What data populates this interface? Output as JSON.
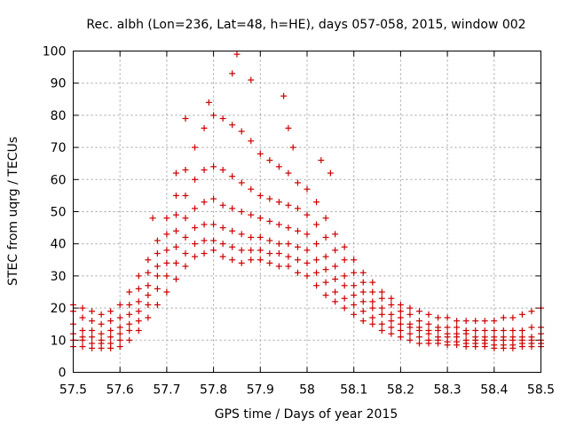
{
  "chart_data": {
    "type": "scatter",
    "title": "Rec. albh (Lon=236, Lat=48, h=HE), days 057-058, 2015, window 002",
    "xlabel": "GPS time / Days of year 2015",
    "ylabel": "STEC from uqrg / TECUs",
    "xlim": [
      57.5,
      58.5
    ],
    "ylim": [
      0,
      100
    ],
    "x_ticks": [
      "57.5",
      "57.6",
      "57.7",
      "57.8",
      "57.9",
      "58",
      "58.1",
      "58.2",
      "58.3",
      "58.4",
      "58.5"
    ],
    "y_ticks": [
      "0",
      "10",
      "20",
      "30",
      "40",
      "50",
      "60",
      "70",
      "80",
      "90",
      "100"
    ],
    "grid": true,
    "marker": "+",
    "color": "#cc0000",
    "series": [
      {
        "name": "s1",
        "x": [
          57.5,
          57.52,
          57.54,
          57.56,
          57.58,
          57.6,
          57.62,
          57.64,
          57.66,
          57.68,
          57.7,
          57.72,
          57.74,
          57.76,
          57.78,
          57.8,
          57.82,
          57.84,
          57.86,
          57.88,
          57.9,
          57.92,
          57.94,
          57.96,
          57.98,
          58.0,
          58.02,
          58.04,
          58.06,
          58.08,
          58.1,
          58.12,
          58.14,
          58.16,
          58.18,
          58.2,
          58.22,
          58.24,
          58.26,
          58.28,
          58.3,
          58.32,
          58.34,
          58.36,
          58.38,
          58.4,
          58.42,
          58.44,
          58.46,
          58.48,
          58.5
        ],
        "y": [
          8,
          8,
          7.5,
          7.5,
          7.5,
          8,
          10,
          13,
          17,
          21,
          25,
          29,
          33,
          36,
          37,
          38,
          36,
          35,
          34,
          35,
          35,
          34,
          33,
          33,
          31,
          30,
          27,
          24,
          22,
          20,
          18,
          16,
          15,
          13,
          12,
          11,
          10,
          9,
          9,
          9,
          8.5,
          8.5,
          8,
          8,
          8,
          7.5,
          7.5,
          7.5,
          8,
          8,
          8
        ]
      },
      {
        "name": "s2",
        "x": [
          57.5,
          57.52,
          57.54,
          57.56,
          57.58,
          57.6,
          57.62,
          57.64,
          57.66,
          57.68,
          57.7,
          57.72,
          57.74,
          57.76,
          57.78,
          57.8,
          57.82,
          57.84,
          57.86,
          57.88,
          57.9,
          57.92,
          57.94,
          57.96,
          57.98,
          58.0,
          58.02,
          58.04,
          58.06,
          58.08,
          58.1,
          58.12,
          58.14,
          58.16,
          58.18,
          58.2,
          58.22,
          58.24,
          58.26,
          58.28,
          58.3,
          58.32,
          58.34,
          58.36,
          58.38,
          58.4,
          58.42,
          58.44,
          58.46,
          58.48,
          58.5
        ],
        "y": [
          10,
          10,
          9,
          9,
          9,
          10,
          13,
          16,
          21,
          26,
          30,
          34,
          37,
          40,
          41,
          41,
          40,
          39,
          38,
          38,
          38,
          37,
          37,
          36,
          35,
          34,
          31,
          28,
          25,
          23,
          21,
          19,
          17,
          15,
          14,
          13,
          12,
          11,
          10,
          10,
          9.5,
          9.5,
          9,
          9,
          9,
          8.5,
          8.5,
          8.5,
          9,
          9,
          9
        ]
      },
      {
        "name": "s3",
        "x": [
          57.5,
          57.52,
          57.54,
          57.56,
          57.58,
          57.6,
          57.62,
          57.64,
          57.66,
          57.68,
          57.7,
          57.72,
          57.74,
          57.76,
          57.78,
          57.8,
          57.82,
          57.84,
          57.86,
          57.88,
          57.9,
          57.92,
          57.94,
          57.96,
          57.98,
          58.0,
          58.02,
          58.04,
          58.06,
          58.08,
          58.1,
          58.12,
          58.14,
          58.16,
          58.18,
          58.2,
          58.22,
          58.24,
          58.26,
          58.28,
          58.3,
          58.32,
          58.34,
          58.36,
          58.38,
          58.4,
          58.42,
          58.44,
          58.46,
          58.48,
          58.5
        ],
        "y": [
          12,
          11,
          11,
          10,
          11,
          12,
          15,
          19,
          24,
          30,
          34,
          39,
          42,
          45,
          46,
          46,
          45,
          44,
          43,
          42,
          42,
          41,
          40,
          40,
          39,
          38,
          35,
          32,
          29,
          27,
          24,
          22,
          20,
          18,
          16,
          15,
          14,
          13,
          12,
          11,
          11,
          11,
          10,
          10,
          10,
          10,
          10,
          10,
          10,
          10,
          10
        ]
      },
      {
        "name": "s4",
        "x": [
          57.5,
          57.52,
          57.54,
          57.56,
          57.58,
          57.6,
          57.62,
          57.64,
          57.66,
          57.68,
          57.7,
          57.72,
          57.74,
          57.76,
          57.78,
          57.8,
          57.82,
          57.84,
          57.86,
          57.88,
          57.9,
          57.92,
          57.94,
          57.96,
          57.98,
          58.0,
          58.02,
          58.04,
          58.06,
          58.08,
          58.1,
          58.12,
          58.14,
          58.16,
          58.18,
          58.2,
          58.22,
          58.24,
          58.26,
          58.28,
          58.3,
          58.32,
          58.34,
          58.36,
          58.38,
          58.4,
          58.42,
          58.44,
          58.46,
          58.48,
          58.5
        ],
        "y": [
          15,
          13,
          13,
          12,
          13,
          14,
          18,
          22,
          27,
          33,
          38,
          44,
          48,
          51,
          53,
          54,
          52,
          51,
          50,
          49,
          48,
          47,
          46,
          45,
          44,
          43,
          40,
          36,
          33,
          30,
          27,
          25,
          22,
          20,
          18,
          17,
          15,
          14,
          13,
          13,
          12,
          12,
          12,
          11,
          11,
          11,
          11,
          11,
          11,
          11,
          12
        ]
      },
      {
        "name": "s5",
        "x": [
          57.5,
          57.52,
          57.54,
          57.56,
          57.58,
          57.6,
          57.62,
          57.64,
          57.66,
          57.68,
          57.7,
          57.72,
          57.74,
          57.76,
          57.78,
          57.8,
          57.82,
          57.84,
          57.86,
          57.88,
          57.9,
          57.92,
          57.94,
          57.96,
          57.98,
          58.0,
          58.02,
          58.04,
          58.06,
          58.08,
          58.1,
          58.12,
          58.14,
          58.16,
          58.18,
          58.2,
          58.22,
          58.24,
          58.26,
          58.28,
          58.3,
          58.32,
          58.34,
          58.36,
          58.38,
          58.4,
          58.42,
          58.44,
          58.46,
          58.48,
          58.5
        ],
        "y": [
          19,
          17,
          16,
          15,
          16,
          17,
          21,
          26,
          31,
          37,
          43,
          49,
          55,
          60,
          63,
          64,
          63,
          61,
          59,
          57,
          55,
          54,
          53,
          52,
          51,
          49,
          46,
          42,
          38,
          35,
          31,
          28,
          25,
          23,
          21,
          19,
          18,
          16,
          15,
          14,
          14,
          14,
          13,
          13,
          13,
          13,
          13,
          13,
          13,
          14,
          14
        ]
      },
      {
        "name": "s6",
        "x": [
          57.5,
          57.52,
          57.54,
          57.56,
          57.58,
          57.6,
          57.62,
          57.64,
          57.66,
          57.68,
          57.7,
          57.72,
          57.74,
          57.76,
          57.78,
          57.8,
          57.82,
          57.84,
          57.86,
          57.88,
          57.9,
          57.92,
          57.94,
          57.96,
          57.98,
          58.0,
          58.02,
          58.04,
          58.06,
          58.08,
          58.1,
          58.12,
          58.14,
          58.16,
          58.18,
          58.2,
          58.22,
          58.24,
          58.26,
          58.28,
          58.3,
          58.32,
          58.34,
          58.36,
          58.38,
          58.4,
          58.42,
          58.44,
          58.46,
          58.48,
          58.5
        ],
        "y": [
          21,
          20,
          19,
          18,
          19,
          21,
          25,
          30,
          35,
          41,
          48,
          55,
          63,
          70,
          76,
          80,
          79,
          77,
          75,
          72,
          68,
          66,
          64,
          62,
          59,
          57,
          53,
          48,
          43,
          39,
          35,
          31,
          28,
          25,
          23,
          21,
          20,
          19,
          18,
          17,
          17,
          16,
          16,
          16,
          16,
          16,
          17,
          17,
          18,
          19,
          20
        ]
      },
      {
        "name": "outliers",
        "x": [
          57.74,
          57.79,
          57.84,
          57.85,
          57.88,
          57.95,
          57.96,
          57.97,
          58.03,
          58.05,
          57.67,
          57.72
        ],
        "y": [
          79,
          84,
          93,
          99,
          91,
          86,
          76,
          70,
          66,
          62,
          48,
          62
        ]
      }
    ]
  }
}
